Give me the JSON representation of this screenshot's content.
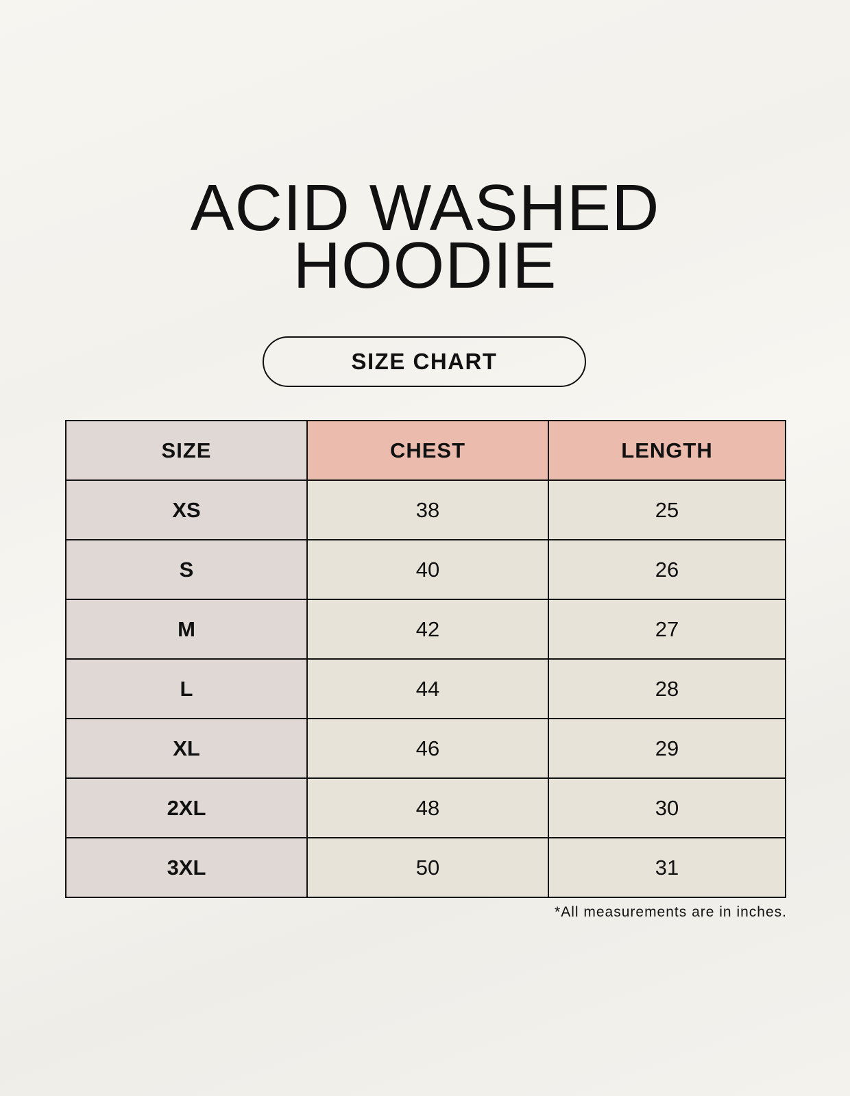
{
  "title": {
    "line1": "ACID WASHED",
    "line2": "HOODIE"
  },
  "badge": "SIZE CHART",
  "table": {
    "headers": [
      "SIZE",
      "CHEST",
      "LENGTH"
    ],
    "rows": [
      {
        "size": "XS",
        "chest": "38",
        "length": "25"
      },
      {
        "size": "S",
        "chest": "40",
        "length": "26"
      },
      {
        "size": "M",
        "chest": "42",
        "length": "27"
      },
      {
        "size": "L",
        "chest": "44",
        "length": "28"
      },
      {
        "size": "XL",
        "chest": "46",
        "length": "29"
      },
      {
        "size": "2XL",
        "chest": "48",
        "length": "30"
      },
      {
        "size": "3XL",
        "chest": "50",
        "length": "31"
      }
    ]
  },
  "footnote": "*All measurements are in inches.",
  "colors": {
    "size_column": "#dfd8d4",
    "header_accent": "#ebbcae",
    "value_cells": "#e8e3d9"
  }
}
